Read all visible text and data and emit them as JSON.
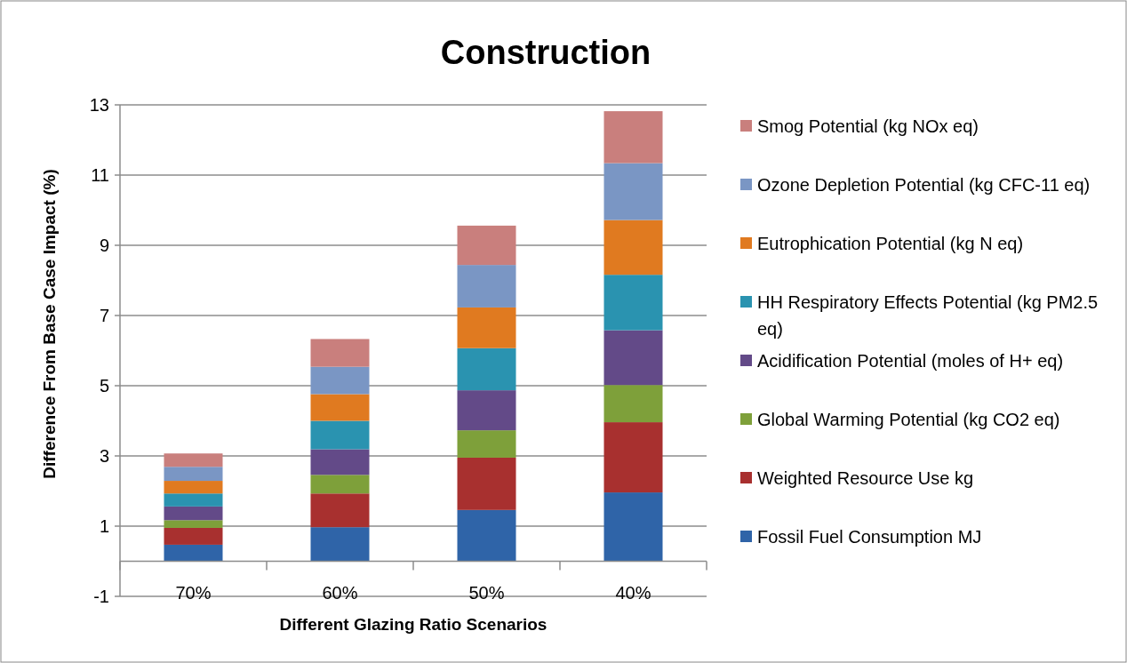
{
  "chart_data": {
    "type": "bar",
    "title": "Construction",
    "xlabel": "Different Glazing Ratio Scenarios",
    "ylabel": "Difference From Base Case Impact (%)",
    "categories": [
      "70%",
      "60%",
      "50%",
      "40%"
    ],
    "stacked": true,
    "ylim": [
      -1,
      13
    ],
    "yticks": [
      -1,
      1,
      3,
      5,
      7,
      9,
      11,
      13
    ],
    "grid": "y",
    "legend": "right",
    "series": [
      {
        "name": "Fossil Fuel Consumption MJ",
        "color": "#2f64a8",
        "values": [
          0.47,
          0.97,
          1.46,
          1.96
        ]
      },
      {
        "name": "Weighted Resource Use kg",
        "color": "#a8302f",
        "values": [
          0.48,
          0.96,
          1.49,
          2.0
        ]
      },
      {
        "name": "Global Warming Potential (kg CO2 eq)",
        "color": "#7ea03a",
        "values": [
          0.22,
          0.53,
          0.78,
          1.06
        ]
      },
      {
        "name": "Acidification Potential (moles of H+ eq)",
        "color": "#634a88",
        "values": [
          0.39,
          0.73,
          1.14,
          1.56
        ]
      },
      {
        "name": "HH Respiratory Effects Potential (kg PM2.5 eq)",
        "color": "#2a93b0",
        "values": [
          0.37,
          0.81,
          1.2,
          1.58
        ]
      },
      {
        "name": "Eutrophication Potential (kg N eq)",
        "color": "#e07a20",
        "values": [
          0.36,
          0.76,
          1.16,
          1.56
        ]
      },
      {
        "name": "Ozone Depletion Potential (kg CFC-11 eq)",
        "color": "#7a96c4",
        "values": [
          0.4,
          0.78,
          1.21,
          1.62
        ]
      },
      {
        "name": "Smog Potential (kg NOx eq)",
        "color": "#c97f7d",
        "values": [
          0.38,
          0.79,
          1.12,
          1.48
        ]
      }
    ]
  }
}
